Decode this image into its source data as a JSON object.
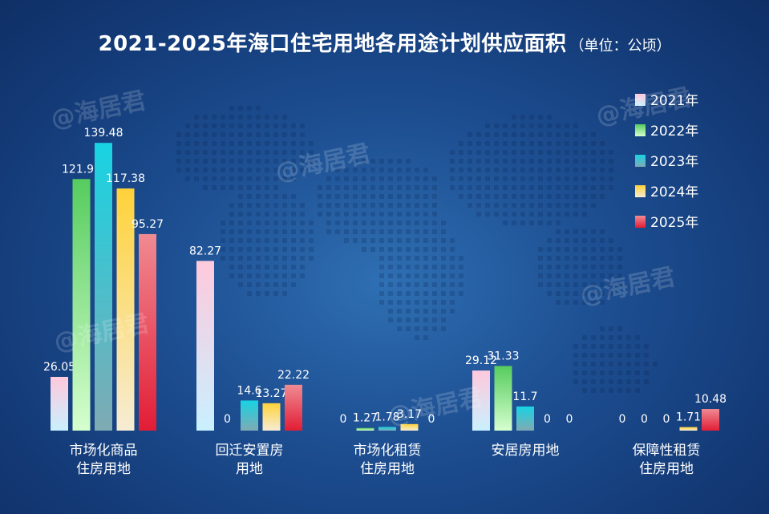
{
  "title": "2021-2025年海口住宅用地各用途计划供应面积",
  "subtitle": "（单位：公顷）",
  "watermark": "@海居君",
  "chart_data": {
    "type": "bar",
    "categories": [
      "市场化商品\n住房用地",
      "回迁安置房\n用地",
      "市场化租赁\n住房用地",
      "安居房用地",
      "保障性租赁\n住房用地"
    ],
    "series": [
      {
        "name": "2021年",
        "values": [
          26.05,
          82.27,
          0,
          29.12,
          0
        ],
        "colors": [
          "#ffc9dc",
          "#c9f0ff"
        ]
      },
      {
        "name": "2022年",
        "values": [
          121.96,
          0,
          1.27,
          31.33,
          0
        ],
        "colors": [
          "#56cc5e",
          "#d6ffcf"
        ]
      },
      {
        "name": "2023年",
        "values": [
          139.48,
          14.6,
          1.78,
          11.7,
          0
        ],
        "colors": [
          "#18d3e3",
          "#7faab3"
        ]
      },
      {
        "name": "2024年",
        "values": [
          117.38,
          13.27,
          3.17,
          0,
          1.71
        ],
        "colors": [
          "#ffd23a",
          "#f6ecd4"
        ]
      },
      {
        "name": "2025年",
        "values": [
          95.27,
          22.22,
          0,
          0,
          10.48
        ],
        "colors": [
          "#f08a92",
          "#e21d36"
        ]
      }
    ],
    "ylim": [
      0,
      145
    ],
    "grid": false,
    "legend": "top-right"
  }
}
